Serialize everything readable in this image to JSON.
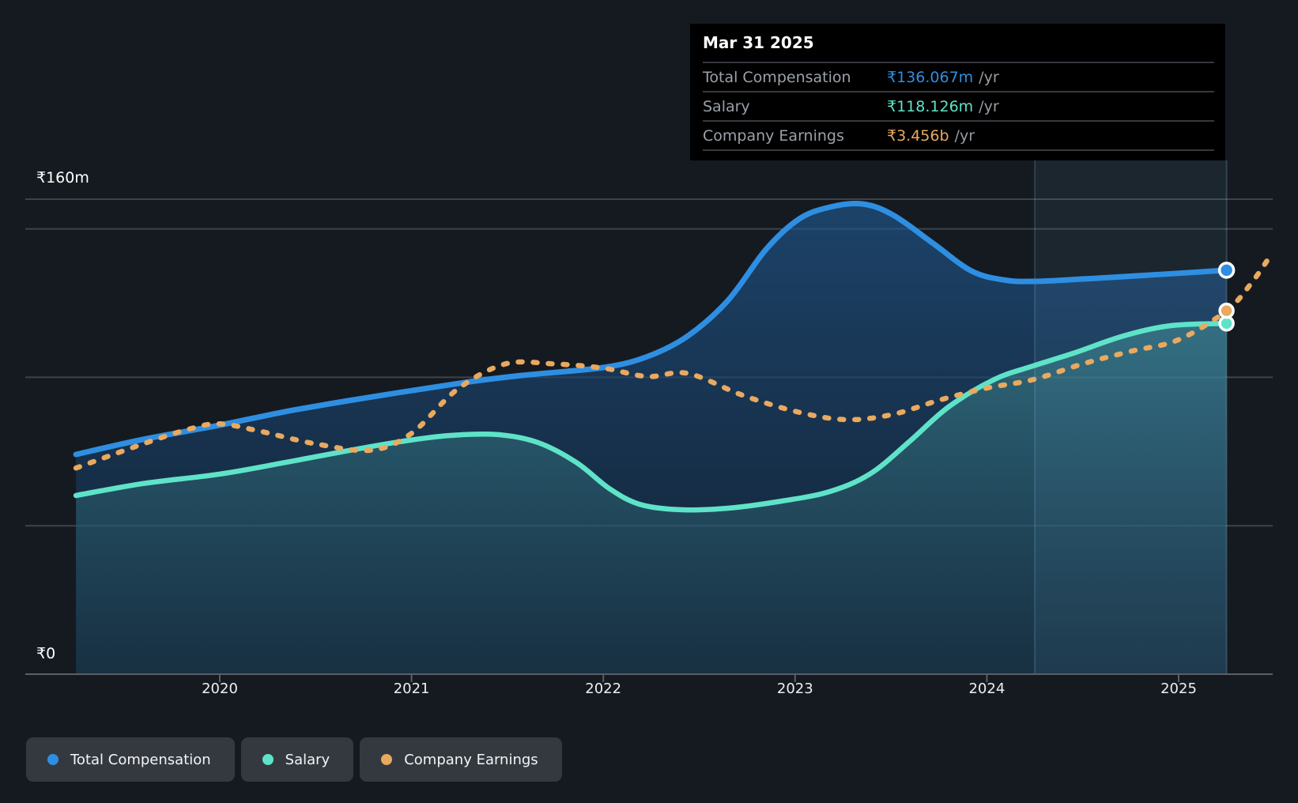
{
  "tooltip": {
    "title": "Mar 31 2025",
    "rows": [
      {
        "label": "Total Compensation",
        "value": "₹136.067m",
        "suffix": "/yr",
        "series": "total_compensation"
      },
      {
        "label": "Salary",
        "value": "₹118.126m",
        "suffix": "/yr",
        "series": "salary"
      },
      {
        "label": "Company Earnings",
        "value": "₹3.456b",
        "suffix": "/yr",
        "series": "company_earnings"
      }
    ]
  },
  "y_axis": {
    "top_label": "₹160m",
    "zero_label": "₹0"
  },
  "x_axis": {
    "years": [
      "2020",
      "2021",
      "2022",
      "2023",
      "2024",
      "2025"
    ]
  },
  "legend": {
    "items": [
      {
        "id": "total_compensation",
        "label": "Total Compensation"
      },
      {
        "id": "salary",
        "label": "Salary"
      },
      {
        "id": "company_earnings",
        "label": "Company Earnings"
      }
    ]
  },
  "colors": {
    "total_compensation": "#2e8fe2",
    "salary": "#5fe3c8",
    "company_earnings": "#e9a95f",
    "grid": "#3e434a",
    "axis": "#5a5f66",
    "marker_ring": "#ffffff",
    "highlight_fill": "rgba(125,205,240,0.07)",
    "highlight_edge_left": "rgba(125,175,210,0.22)",
    "highlight_edge_right": "rgba(160,220,250,0.20)",
    "area_blue_top": "rgba(33,92,150,0.62)",
    "area_blue_bottom": "rgba(16,40,66,0.55)",
    "area_teal_top": "rgba(97,214,196,0.30)",
    "area_teal_bottom": "rgba(52,120,140,0.17)"
  },
  "chart_data": {
    "type": "area",
    "x_axis_ticks": [
      2020,
      2021,
      2022,
      2023,
      2024,
      2025
    ],
    "y_axis_m": {
      "min": 0,
      "max": 160,
      "gridline_values_m": [
        160,
        150,
        100,
        50
      ],
      "labeled": [
        "₹160m",
        "₹0"
      ]
    },
    "earnings_axis_b": {
      "calibration_year": 2025.25,
      "calibration_value_b": 3.456
    },
    "highlight_period": {
      "from_year": 2024.25,
      "to_year": 2025.25,
      "date_shown": "Mar 31 2025"
    },
    "series": [
      {
        "id": "total_compensation",
        "name": "Total Compensation",
        "unit": "₹m",
        "style": "line-area",
        "end_marker_index": -1,
        "points": [
          [
            2019.25,
            74
          ],
          [
            2019.6,
            79.1
          ],
          [
            2020,
            83.9
          ],
          [
            2020.34,
            88.4
          ],
          [
            2020.67,
            92.1
          ],
          [
            2021.25,
            98
          ],
          [
            2021.57,
            100.6
          ],
          [
            2022,
            103.3
          ],
          [
            2022.23,
            107
          ],
          [
            2022.44,
            113.9
          ],
          [
            2022.65,
            125.9
          ],
          [
            2022.85,
            143.2
          ],
          [
            2023.02,
            153.3
          ],
          [
            2023.18,
            157.3
          ],
          [
            2023.35,
            158.4
          ],
          [
            2023.51,
            154.7
          ],
          [
            2023.72,
            145.1
          ],
          [
            2023.92,
            135.8
          ],
          [
            2024.09,
            132.8
          ],
          [
            2024.24,
            132.3
          ],
          [
            2024.5,
            133.1
          ],
          [
            2024.79,
            134.2
          ],
          [
            2025.25,
            136.067
          ]
        ]
      },
      {
        "id": "salary",
        "name": "Salary",
        "unit": "₹m",
        "style": "line-area",
        "end_marker_index": -1,
        "points": [
          [
            2019.25,
            60.2
          ],
          [
            2019.6,
            64.2
          ],
          [
            2020,
            67.4
          ],
          [
            2020.34,
            71.3
          ],
          [
            2020.67,
            75.3
          ],
          [
            2020.96,
            78.5
          ],
          [
            2021.2,
            80.4
          ],
          [
            2021.45,
            80.7
          ],
          [
            2021.66,
            78
          ],
          [
            2021.86,
            71.3
          ],
          [
            2022.03,
            62.6
          ],
          [
            2022.19,
            57.2
          ],
          [
            2022.4,
            55.4
          ],
          [
            2022.65,
            55.9
          ],
          [
            2022.93,
            58.3
          ],
          [
            2023.18,
            61.5
          ],
          [
            2023.39,
            67.4
          ],
          [
            2023.59,
            78
          ],
          [
            2023.8,
            90
          ],
          [
            2024.04,
            99.3
          ],
          [
            2024.24,
            103.8
          ],
          [
            2024.46,
            108.3
          ],
          [
            2024.71,
            113.9
          ],
          [
            2024.96,
            117.4
          ],
          [
            2025.25,
            118.126
          ]
        ]
      },
      {
        "id": "company_earnings",
        "name": "Company Earnings",
        "unit": "₹b",
        "style": "dotted-line",
        "end_marker_index": 24,
        "points": [
          [
            2019.25,
            1.96
          ],
          [
            2019.6,
            2.19
          ],
          [
            2019.84,
            2.33
          ],
          [
            2020,
            2.38
          ],
          [
            2020.21,
            2.31
          ],
          [
            2020.5,
            2.19
          ],
          [
            2020.79,
            2.13
          ],
          [
            2021,
            2.29
          ],
          [
            2021.24,
            2.71
          ],
          [
            2021.49,
            2.95
          ],
          [
            2021.74,
            2.95
          ],
          [
            2022,
            2.91
          ],
          [
            2022.23,
            2.83
          ],
          [
            2022.44,
            2.86
          ],
          [
            2022.73,
            2.65
          ],
          [
            2023.02,
            2.49
          ],
          [
            2023.27,
            2.42
          ],
          [
            2023.51,
            2.47
          ],
          [
            2023.76,
            2.61
          ],
          [
            2024,
            2.72
          ],
          [
            2024.24,
            2.8
          ],
          [
            2024.5,
            2.95
          ],
          [
            2024.75,
            3.07
          ],
          [
            2025,
            3.18
          ],
          [
            2025.25,
            3.456
          ],
          [
            2025.38,
            3.72
          ],
          [
            2025.49,
            4.01
          ]
        ]
      }
    ]
  }
}
